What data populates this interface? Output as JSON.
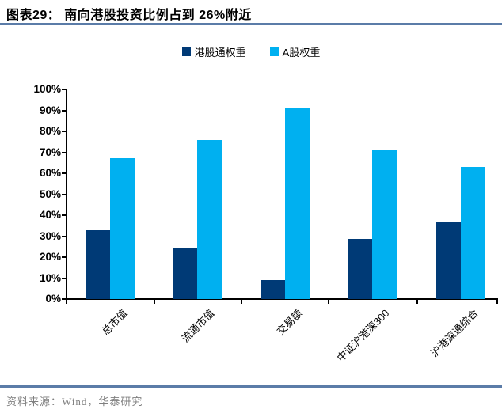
{
  "header": {
    "title": "图表29：  南向港股投资比例占到 26%附近"
  },
  "chart_data": {
    "type": "bar",
    "title": "南向港股投资比例占到 26%附近",
    "categories": [
      "总市值",
      "流通市值",
      "交易额",
      "中证沪港深300",
      "沪港深通综合"
    ],
    "series": [
      {
        "name": "港股通权重",
        "color": "#003a76",
        "values": [
          33,
          24,
          9,
          28.5,
          37
        ]
      },
      {
        "name": "A股权重",
        "color": "#00b0f0",
        "values": [
          67,
          76,
          91,
          71.5,
          63
        ]
      }
    ],
    "ylabel": "",
    "xlabel": "",
    "ylim": [
      0,
      100
    ],
    "ytick_step": 10,
    "ytick_labels": [
      "0%",
      "10%",
      "20%",
      "30%",
      "40%",
      "50%",
      "60%",
      "70%",
      "80%",
      "90%",
      "100%"
    ],
    "grid": false,
    "legend_position": "top-center",
    "xlabel_rotation_deg": -45
  },
  "colors": {
    "rule_blue": "#5b7ca8",
    "axis": "#000000",
    "source_text": "#7f7f7f"
  },
  "footer": {
    "source": "资料来源：Wind，华泰研究"
  }
}
